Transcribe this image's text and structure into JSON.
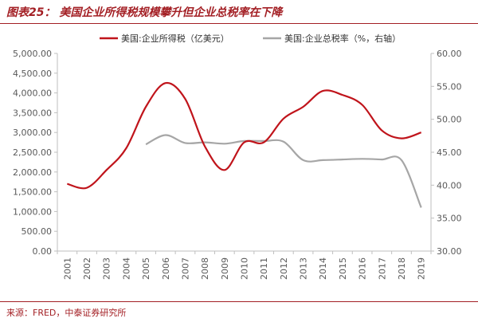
{
  "page": {
    "title": "图表25：  美国企业所得税规模攀升但企业总税率在下降",
    "source": "来源：FRED，中泰证券研究所"
  },
  "colors": {
    "accent": "#a31f24",
    "series_left": "#c0141b",
    "series_right": "#a6a6a6",
    "axis": "#bfbfbf",
    "text": "#595959"
  },
  "chart_data": {
    "type": "line",
    "categories": [
      "2001",
      "2002",
      "2003",
      "2004",
      "2005",
      "2006",
      "2007",
      "2008",
      "2009",
      "2010",
      "2011",
      "2012",
      "2013",
      "2014",
      "2015",
      "2016",
      "2017",
      "2018",
      "2019"
    ],
    "left_axis": {
      "ylim": [
        0,
        5000
      ],
      "ticks": [
        "0.00",
        "500.00",
        "1,000.00",
        "1,500.00",
        "2,000.00",
        "2,500.00",
        "3,000.00",
        "3,500.00",
        "4,000.00",
        "4,500.00",
        "5,000.00"
      ],
      "tick_values": [
        0,
        500,
        1000,
        1500,
        2000,
        2500,
        3000,
        3500,
        4000,
        4500,
        5000
      ]
    },
    "right_axis": {
      "ylim": [
        30,
        60
      ],
      "ticks": [
        "30.00",
        "35.00",
        "40.00",
        "45.00",
        "50.00",
        "55.00",
        "60.00"
      ],
      "tick_values": [
        30,
        35,
        40,
        45,
        50,
        55,
        60
      ]
    },
    "legend_position": "top",
    "series": [
      {
        "name": "美国:企业所得税（亿美元）",
        "axis": "left",
        "values": [
          1700,
          1600,
          2050,
          2600,
          3650,
          4250,
          3850,
          2650,
          2050,
          2750,
          2750,
          3350,
          3650,
          4050,
          3950,
          3700,
          3050,
          2850,
          3000
        ]
      },
      {
        "name": "美国:企业总税率（%，右轴）",
        "axis": "right",
        "values": [
          null,
          null,
          null,
          null,
          46.2,
          47.6,
          46.4,
          46.5,
          46.3,
          46.7,
          46.7,
          46.6,
          43.8,
          43.8,
          43.9,
          44.0,
          43.9,
          43.8,
          36.6
        ]
      }
    ]
  }
}
